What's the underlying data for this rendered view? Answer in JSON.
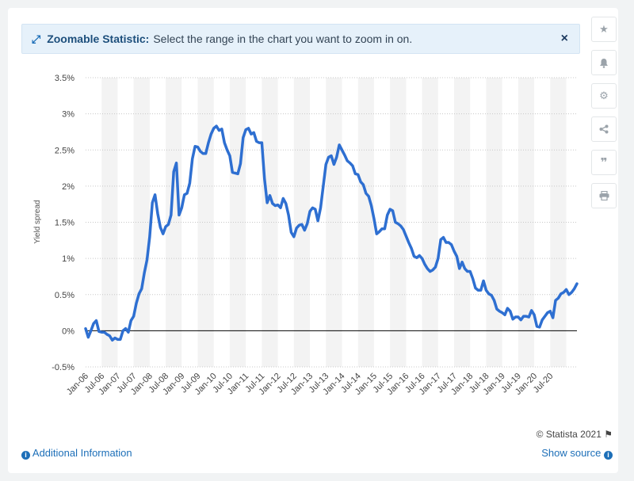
{
  "banner": {
    "title": "Zoomable Statistic:",
    "text": "Select the range in the chart you want to zoom in on.",
    "close": "×"
  },
  "toolbar": {
    "icons": [
      "star-icon",
      "bell-icon",
      "gear-icon",
      "share-icon",
      "quote-icon",
      "print-icon"
    ]
  },
  "footer": {
    "copyright": "© Statista 2021",
    "additional_info": "Additional Information",
    "show_source": "Show source"
  },
  "colors": {
    "line": "#2e6fd1",
    "band": "#f3f3f3",
    "grid": "#c8c8c8",
    "zero": "#000000"
  },
  "chart_data": {
    "type": "line",
    "title": "",
    "xlabel": "",
    "ylabel": "Yield spread",
    "ylim": [
      -0.5,
      3.5
    ],
    "yticks": [
      "-0.5%",
      "0%",
      "0.5%",
      "1%",
      "1.5%",
      "2%",
      "2.5%",
      "3%",
      "3.5%"
    ],
    "xticks": [
      "Jan-06",
      "Jul-06",
      "Jan-07",
      "Jul-07",
      "Jan-08",
      "Jul-08",
      "Jan-09",
      "Jul-09",
      "Jan-10",
      "Jul-10",
      "Jan-11",
      "Jul-11",
      "Jan-12",
      "Jul-12",
      "Jan-13",
      "Jul-13",
      "Jan-14",
      "Jul-14",
      "Jan-15",
      "Jul-15",
      "Jan-16",
      "Jul-16",
      "Jan-17",
      "Jul-17",
      "Jan-18",
      "Jul-18",
      "Jan-19",
      "Jul-19",
      "Jan-20",
      "Jul-20"
    ],
    "grid": true,
    "series": [
      {
        "start": "Jan-06",
        "frequency": "monthly",
        "values": [
          0.03,
          -0.09,
          0.0,
          0.1,
          0.14,
          -0.01,
          -0.02,
          -0.02,
          -0.05,
          -0.07,
          -0.13,
          -0.1,
          -0.12,
          -0.12,
          0.0,
          0.03,
          -0.02,
          0.14,
          0.2,
          0.38,
          0.51,
          0.58,
          0.8,
          0.98,
          1.3,
          1.77,
          1.88,
          1.62,
          1.43,
          1.34,
          1.44,
          1.47,
          1.6,
          2.2,
          2.32,
          1.6,
          1.7,
          1.88,
          1.9,
          2.04,
          2.38,
          2.55,
          2.54,
          2.48,
          2.45,
          2.45,
          2.6,
          2.72,
          2.8,
          2.83,
          2.77,
          2.79,
          2.6,
          2.5,
          2.42,
          2.19,
          2.18,
          2.17,
          2.31,
          2.67,
          2.78,
          2.8,
          2.72,
          2.74,
          2.62,
          2.6,
          2.6,
          2.1,
          1.77,
          1.87,
          1.76,
          1.73,
          1.74,
          1.7,
          1.83,
          1.76,
          1.6,
          1.36,
          1.3,
          1.42,
          1.46,
          1.47,
          1.39,
          1.48,
          1.65,
          1.7,
          1.68,
          1.52,
          1.7,
          2.0,
          2.3,
          2.4,
          2.42,
          2.3,
          2.4,
          2.57,
          2.5,
          2.43,
          2.35,
          2.32,
          2.28,
          2.17,
          2.16,
          2.06,
          2.02,
          1.9,
          1.86,
          1.73,
          1.55,
          1.34,
          1.37,
          1.41,
          1.41,
          1.6,
          1.68,
          1.66,
          1.5,
          1.48,
          1.45,
          1.4,
          1.31,
          1.22,
          1.14,
          1.03,
          1.01,
          1.04,
          1.0,
          0.92,
          0.86,
          0.82,
          0.84,
          0.88,
          1.0,
          1.26,
          1.29,
          1.22,
          1.22,
          1.19,
          1.1,
          1.03,
          0.86,
          0.95,
          0.86,
          0.82,
          0.82,
          0.72,
          0.59,
          0.56,
          0.56,
          0.69,
          0.56,
          0.51,
          0.49,
          0.42,
          0.3,
          0.27,
          0.25,
          0.22,
          0.31,
          0.27,
          0.16,
          0.19,
          0.19,
          0.15,
          0.2,
          0.2,
          0.19,
          0.28,
          0.22,
          0.06,
          0.05,
          0.15,
          0.2,
          0.25,
          0.27,
          0.18,
          0.42,
          0.45,
          0.51,
          0.53,
          0.57,
          0.5,
          0.53,
          0.58,
          0.65
        ]
      }
    ]
  }
}
